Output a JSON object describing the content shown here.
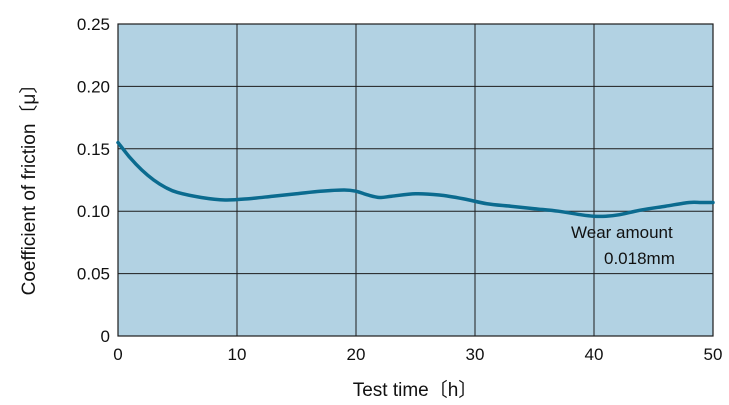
{
  "chart_data": {
    "type": "line",
    "title": "",
    "xlabel": "Test time〔h〕",
    "ylabel": "Coefficient of friction〔μ〕",
    "xlim": [
      0,
      50
    ],
    "ylim": [
      0,
      0.25
    ],
    "x_ticks": [
      0,
      10,
      20,
      30,
      40,
      50
    ],
    "x_tick_labels": [
      "0",
      "10",
      "20",
      "30",
      "40",
      "50"
    ],
    "y_ticks": [
      0,
      0.05,
      0.1,
      0.15,
      0.2,
      0.25
    ],
    "y_tick_labels": [
      "0",
      "0.05",
      "0.10",
      "0.15",
      "0.20",
      "0.25"
    ],
    "grid": true,
    "series": [
      {
        "x": [
          0,
          1,
          2,
          3,
          4,
          5,
          7,
          9,
          11,
          13,
          15,
          17,
          19,
          20,
          21,
          22,
          23,
          25,
          27,
          29,
          31,
          33,
          35,
          37,
          39,
          40,
          41,
          42,
          44,
          46,
          48,
          49,
          50
        ],
        "y": [
          0.155,
          0.143,
          0.133,
          0.125,
          0.119,
          0.115,
          0.111,
          0.109,
          0.11,
          0.112,
          0.114,
          0.116,
          0.117,
          0.116,
          0.113,
          0.111,
          0.112,
          0.114,
          0.113,
          0.11,
          0.106,
          0.104,
          0.102,
          0.1,
          0.097,
          0.096,
          0.096,
          0.097,
          0.101,
          0.104,
          0.107,
          0.107,
          0.107
        ]
      }
    ],
    "annotation": {
      "line1": "Wear amount",
      "line2": "0.018mm"
    },
    "colors": {
      "plot_background": "#b2d2e3",
      "line": "#0b6b8f",
      "grid": "#1c1c1c"
    }
  }
}
